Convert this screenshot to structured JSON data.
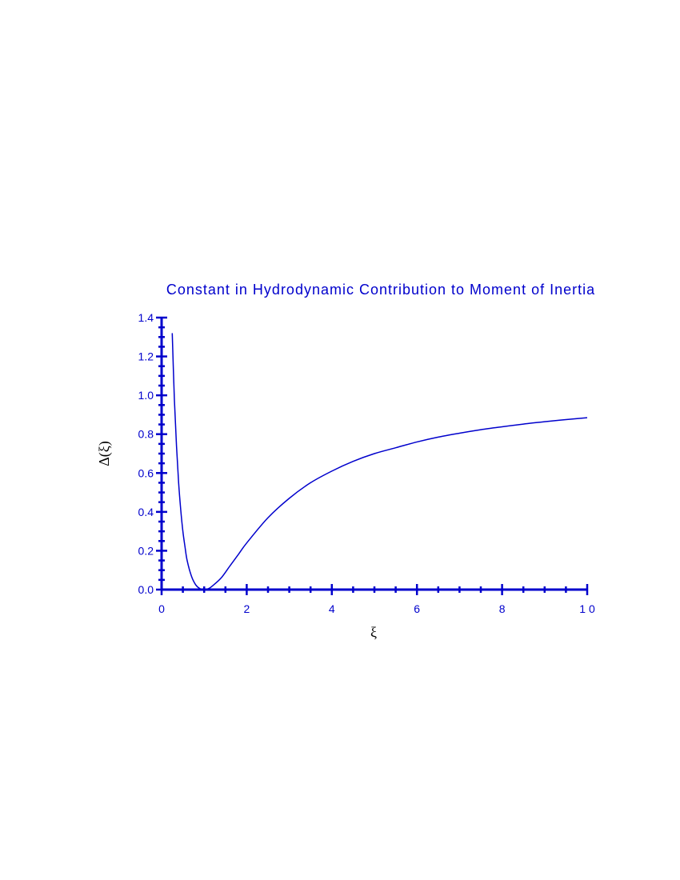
{
  "colors": {
    "ink": "#0000cc"
  },
  "chart_data": {
    "type": "line",
    "title": "Constant in Hydrodynamic Contribution to Moment of Inertia",
    "xlabel": "ξ",
    "ylabel": "Δ(ξ)",
    "xlim": [
      0,
      10
    ],
    "ylim": [
      0,
      1.4
    ],
    "xticks": [
      0,
      2,
      4,
      6,
      8,
      10
    ],
    "xtick_labels": [
      "0",
      "2",
      "4",
      "6",
      "8",
      "1 0"
    ],
    "yticks": [
      0,
      0.2,
      0.4,
      0.6,
      0.8,
      1.0,
      1.2,
      1.4
    ],
    "ytick_labels": [
      "0.0",
      "0.2",
      "0.4",
      "0.6",
      "0.8",
      "1.0",
      "1.2",
      "1.4"
    ],
    "x_minor_step": 0.5,
    "y_minor_step": 0.05,
    "grid": false,
    "series": [
      {
        "x": [
          0.25,
          0.3,
          0.35,
          0.4,
          0.45,
          0.5,
          0.55,
          0.6,
          0.7,
          0.8,
          0.9,
          1.0,
          1.1,
          1.2,
          1.4,
          1.6,
          1.8,
          2.0,
          2.5,
          3.0,
          3.5,
          4.0,
          4.5,
          5.0,
          5.5,
          6.0,
          6.5,
          7.0,
          7.5,
          8.0,
          8.5,
          9.0,
          9.5,
          10.0
        ],
        "y": [
          1.32,
          0.98,
          0.74,
          0.55,
          0.41,
          0.3,
          0.22,
          0.15,
          0.07,
          0.025,
          0.005,
          0.0,
          0.005,
          0.02,
          0.06,
          0.12,
          0.18,
          0.24,
          0.37,
          0.47,
          0.55,
          0.61,
          0.66,
          0.7,
          0.73,
          0.76,
          0.785,
          0.805,
          0.823,
          0.838,
          0.852,
          0.864,
          0.875,
          0.885
        ]
      }
    ]
  }
}
